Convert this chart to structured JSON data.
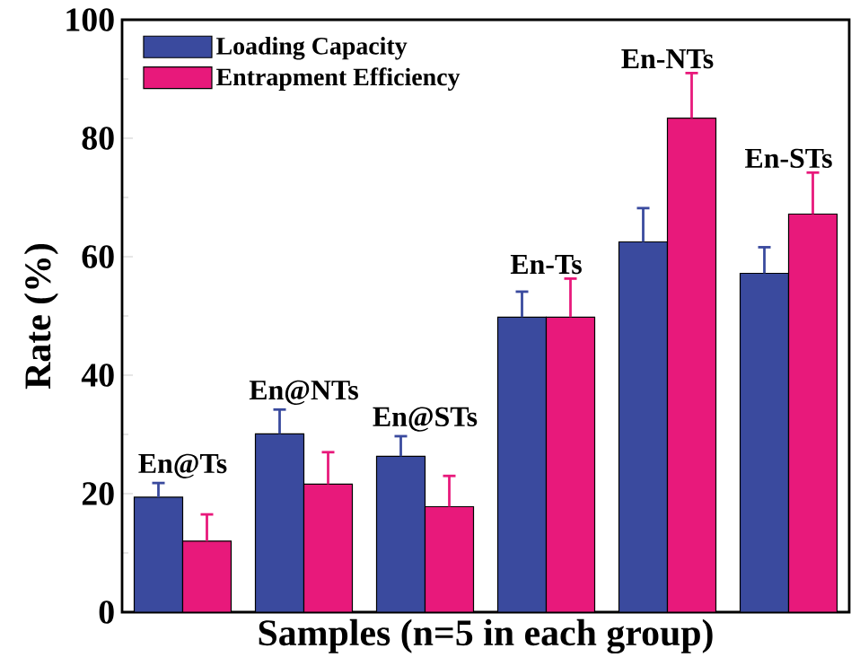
{
  "chart_data": {
    "type": "bar",
    "xlabel": "Samples (n=5 in each group)",
    "ylabel": "Rate (%)",
    "categories": [
      "En@Ts",
      "En@NTs",
      "En@STs",
      "En-Ts",
      "En-NTs",
      "En-STs"
    ],
    "series": [
      {
        "name": "Loading Capacity",
        "color": "#3a4a9e",
        "values": [
          19.4,
          30.1,
          26.3,
          49.8,
          62.5,
          57.2
        ],
        "errors": [
          2.4,
          4.1,
          3.4,
          4.3,
          5.7,
          4.4
        ]
      },
      {
        "name": "Entrapment Efficiency",
        "color": "#e8197b",
        "values": [
          12.0,
          21.6,
          17.8,
          49.8,
          83.4,
          67.2
        ],
        "errors": [
          4.5,
          5.4,
          5.2,
          6.5,
          7.6,
          7.0
        ]
      }
    ],
    "ylim": [
      0,
      100
    ],
    "yticks": [
      0,
      20,
      40,
      60,
      80,
      100
    ],
    "legend": "top left",
    "tick_labels": "y"
  }
}
